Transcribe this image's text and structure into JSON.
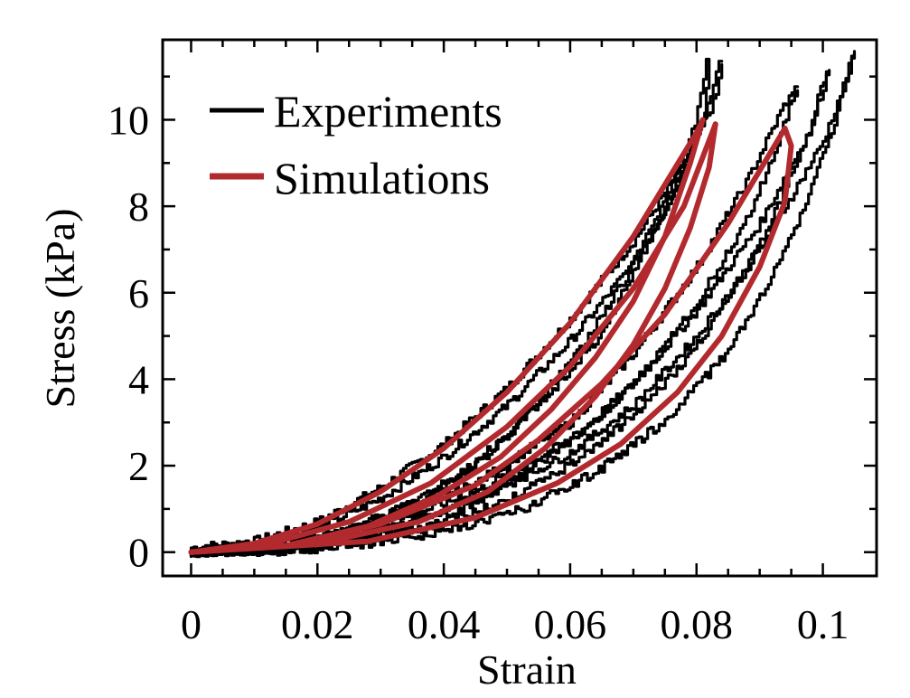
{
  "chart_data": {
    "type": "line",
    "xlabel": "Strain",
    "ylabel": "Stress (kPa)",
    "xlim": [
      -0.0045,
      0.1085
    ],
    "ylim": [
      -0.55,
      11.85
    ],
    "xticks": [
      0,
      0.02,
      0.04,
      0.06,
      0.08,
      0.1
    ],
    "xtick_labels": [
      "0",
      "0.02",
      "0.04",
      "0.06",
      "0.08",
      "0.1"
    ],
    "yticks": [
      0,
      2,
      4,
      6,
      8,
      10
    ],
    "ytick_labels": [
      "0",
      "2",
      "4",
      "6",
      "8",
      "10"
    ],
    "grid": false,
    "legend_position": "top-left",
    "series": [
      {
        "name": "Experiments",
        "color": "#000000",
        "style": "stepped-noisy",
        "curves": [
          {
            "loading": [
              [
                0,
                0.1
              ],
              [
                0.01,
                0.25
              ],
              [
                0.02,
                0.7
              ],
              [
                0.03,
                1.5
              ],
              [
                0.04,
                2.5
              ],
              [
                0.05,
                3.8
              ],
              [
                0.06,
                5.4
              ],
              [
                0.07,
                7.2
              ],
              [
                0.078,
                9.0
              ],
              [
                0.083,
                10.5
              ],
              [
                0.084,
                11.3
              ]
            ],
            "unloading": [
              [
                0.084,
                11.3
              ],
              [
                0.082,
                10.2
              ],
              [
                0.077,
                8.5
              ],
              [
                0.072,
                6.9
              ],
              [
                0.065,
                5.0
              ],
              [
                0.056,
                3.5
              ],
              [
                0.047,
                2.2
              ],
              [
                0.037,
                1.2
              ],
              [
                0.025,
                0.5
              ],
              [
                0.012,
                0.1
              ],
              [
                0,
                0
              ]
            ]
          },
          {
            "loading": [
              [
                0,
                0.05
              ],
              [
                0.01,
                0.2
              ],
              [
                0.02,
                0.55
              ],
              [
                0.03,
                1.25
              ],
              [
                0.04,
                2.2
              ],
              [
                0.05,
                3.4
              ],
              [
                0.06,
                4.9
              ],
              [
                0.07,
                6.7
              ],
              [
                0.076,
                8.2
              ],
              [
                0.081,
                10.0
              ],
              [
                0.082,
                11.3
              ]
            ],
            "unloading": [
              [
                0.082,
                11.3
              ],
              [
                0.08,
                9.8
              ],
              [
                0.075,
                8.0
              ],
              [
                0.069,
                6.3
              ],
              [
                0.062,
                4.7
              ],
              [
                0.054,
                3.3
              ],
              [
                0.045,
                2.0
              ],
              [
                0.035,
                1.1
              ],
              [
                0.023,
                0.4
              ],
              [
                0.01,
                0.05
              ],
              [
                0,
                0
              ]
            ]
          },
          {
            "loading": [
              [
                0,
                0
              ],
              [
                0.015,
                0.15
              ],
              [
                0.03,
                0.7
              ],
              [
                0.045,
                1.6
              ],
              [
                0.06,
                3.0
              ],
              [
                0.07,
                4.6
              ],
              [
                0.08,
                6.6
              ],
              [
                0.088,
                8.6
              ],
              [
                0.094,
                10.4
              ],
              [
                0.096,
                10.7
              ]
            ],
            "unloading": [
              [
                0.096,
                10.7
              ],
              [
                0.093,
                9.3
              ],
              [
                0.088,
                7.6
              ],
              [
                0.081,
                5.9
              ],
              [
                0.073,
                4.3
              ],
              [
                0.064,
                3.0
              ],
              [
                0.054,
                1.9
              ],
              [
                0.043,
                1.0
              ],
              [
                0.03,
                0.4
              ],
              [
                0.015,
                0.05
              ],
              [
                0,
                0
              ]
            ]
          },
          {
            "loading": [
              [
                0,
                0
              ],
              [
                0.015,
                0.12
              ],
              [
                0.03,
                0.6
              ],
              [
                0.045,
                1.4
              ],
              [
                0.06,
                2.6
              ],
              [
                0.07,
                3.9
              ],
              [
                0.08,
                5.6
              ],
              [
                0.09,
                7.6
              ],
              [
                0.098,
                9.8
              ],
              [
                0.101,
                11.2
              ]
            ],
            "unloading": [
              [
                0.101,
                11.2
              ],
              [
                0.098,
                9.6
              ],
              [
                0.093,
                7.9
              ],
              [
                0.087,
                6.2
              ],
              [
                0.079,
                4.5
              ],
              [
                0.07,
                3.1
              ],
              [
                0.06,
                2.0
              ],
              [
                0.049,
                1.1
              ],
              [
                0.035,
                0.45
              ],
              [
                0.018,
                0.05
              ],
              [
                0,
                0
              ]
            ]
          },
          {
            "loading": [
              [
                0,
                0
              ],
              [
                0.015,
                0.1
              ],
              [
                0.03,
                0.5
              ],
              [
                0.045,
                1.2
              ],
              [
                0.06,
                2.3
              ],
              [
                0.07,
                3.4
              ],
              [
                0.08,
                5.0
              ],
              [
                0.09,
                7.0
              ],
              [
                0.1,
                9.5
              ],
              [
                0.105,
                11.5
              ]
            ],
            "unloading": [
              [
                0.105,
                11.5
              ],
              [
                0.102,
                9.8
              ],
              [
                0.097,
                7.8
              ],
              [
                0.091,
                6.0
              ],
              [
                0.084,
                4.4
              ],
              [
                0.075,
                3.0
              ],
              [
                0.065,
                1.9
              ],
              [
                0.053,
                1.0
              ],
              [
                0.038,
                0.4
              ],
              [
                0.02,
                0.05
              ],
              [
                0,
                0
              ]
            ]
          }
        ]
      },
      {
        "name": "Simulations",
        "color": "#B22A2E",
        "style": "smooth",
        "curves": [
          {
            "loading": [
              [
                0,
                0
              ],
              [
                0.01,
                0.2
              ],
              [
                0.02,
                0.65
              ],
              [
                0.03,
                1.4
              ],
              [
                0.04,
                2.4
              ],
              [
                0.05,
                3.7
              ],
              [
                0.06,
                5.3
              ],
              [
                0.07,
                7.3
              ],
              [
                0.08,
                9.7
              ],
              [
                0.081,
                10.0
              ]
            ],
            "unloading": [
              [
                0.081,
                10.0
              ],
              [
                0.079,
                9.0
              ],
              [
                0.075,
                7.3
              ],
              [
                0.07,
                5.8
              ],
              [
                0.064,
                4.5
              ],
              [
                0.057,
                3.3
              ],
              [
                0.049,
                2.2
              ],
              [
                0.039,
                1.3
              ],
              [
                0.028,
                0.6
              ],
              [
                0.015,
                0.15
              ],
              [
                0,
                0
              ]
            ]
          },
          {
            "loading": [
              [
                0,
                0
              ],
              [
                0.012,
                0.18
              ],
              [
                0.025,
                0.7
              ],
              [
                0.038,
                1.6
              ],
              [
                0.05,
                2.9
              ],
              [
                0.06,
                4.3
              ],
              [
                0.07,
                6.1
              ],
              [
                0.078,
                8.0
              ],
              [
                0.083,
                9.9
              ]
            ],
            "unloading": [
              [
                0.083,
                9.9
              ],
              [
                0.082,
                8.9
              ],
              [
                0.079,
                7.5
              ],
              [
                0.075,
                6.1
              ],
              [
                0.07,
                4.8
              ],
              [
                0.064,
                3.6
              ],
              [
                0.056,
                2.4
              ],
              [
                0.047,
                1.4
              ],
              [
                0.036,
                0.7
              ],
              [
                0.02,
                0.2
              ],
              [
                0,
                0
              ]
            ]
          },
          {
            "loading": [
              [
                0,
                0
              ],
              [
                0.015,
                0.15
              ],
              [
                0.03,
                0.65
              ],
              [
                0.045,
                1.55
              ],
              [
                0.055,
                2.6
              ],
              [
                0.065,
                3.9
              ],
              [
                0.075,
                5.5
              ],
              [
                0.085,
                7.6
              ],
              [
                0.094,
                9.8
              ]
            ],
            "unloading": [
              [
                0.094,
                9.8
              ],
              [
                0.095,
                9.4
              ],
              [
                0.094,
                8.1
              ],
              [
                0.09,
                6.6
              ],
              [
                0.084,
                5.0
              ],
              [
                0.077,
                3.7
              ],
              [
                0.068,
                2.5
              ],
              [
                0.058,
                1.6
              ],
              [
                0.045,
                0.8
              ],
              [
                0.028,
                0.25
              ],
              [
                0,
                0
              ]
            ]
          }
        ]
      }
    ]
  }
}
